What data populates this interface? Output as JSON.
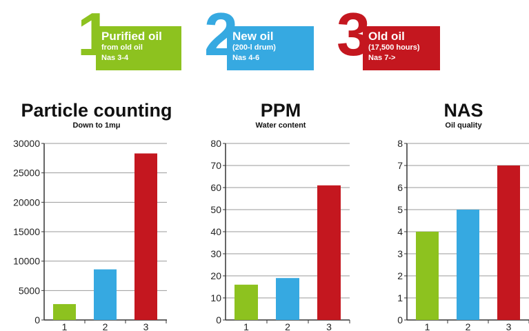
{
  "legend": [
    {
      "number": "1",
      "title": "Purified oil",
      "line1": "from old oil",
      "line2": "Nas 3-4",
      "color": "#8dc21f"
    },
    {
      "number": "2",
      "title": "New oil",
      "line1": "(200-l drum)",
      "line2": "Nas 4-6",
      "color": "#36a9e1"
    },
    {
      "number": "3",
      "title": "Old oil",
      "line1": "(17,500 hours)",
      "line2": "Nas 7->",
      "color": "#c4171f"
    }
  ],
  "chart_data": [
    {
      "type": "bar",
      "title": "Particle counting",
      "subtitle": "Down to 1mμ",
      "categories": [
        "1",
        "2",
        "3"
      ],
      "values": [
        2700,
        8600,
        28300
      ],
      "colors": [
        "#8dc21f",
        "#36a9e1",
        "#c4171f"
      ],
      "ylim": [
        0,
        30000
      ],
      "yticks": [
        "0",
        "5000",
        "10000",
        "15000",
        "20000",
        "25000",
        "30000"
      ],
      "grid": true
    },
    {
      "type": "bar",
      "title": "PPM",
      "subtitle": "Water content",
      "categories": [
        "1",
        "2",
        "3"
      ],
      "values": [
        16,
        19,
        61
      ],
      "colors": [
        "#8dc21f",
        "#36a9e1",
        "#c4171f"
      ],
      "ylim": [
        0,
        80
      ],
      "yticks": [
        "0",
        "10",
        "20",
        "30",
        "40",
        "50",
        "60",
        "70",
        "80"
      ],
      "grid": true
    },
    {
      "type": "bar",
      "title": "NAS",
      "subtitle": "Oil quality",
      "categories": [
        "1",
        "2",
        "3"
      ],
      "values": [
        4,
        5,
        7
      ],
      "colors": [
        "#8dc21f",
        "#36a9e1",
        "#c4171f"
      ],
      "ylim": [
        0,
        8
      ],
      "yticks": [
        "0",
        "1",
        "2",
        "3",
        "4",
        "5",
        "6",
        "7",
        "8"
      ],
      "grid": true
    }
  ]
}
